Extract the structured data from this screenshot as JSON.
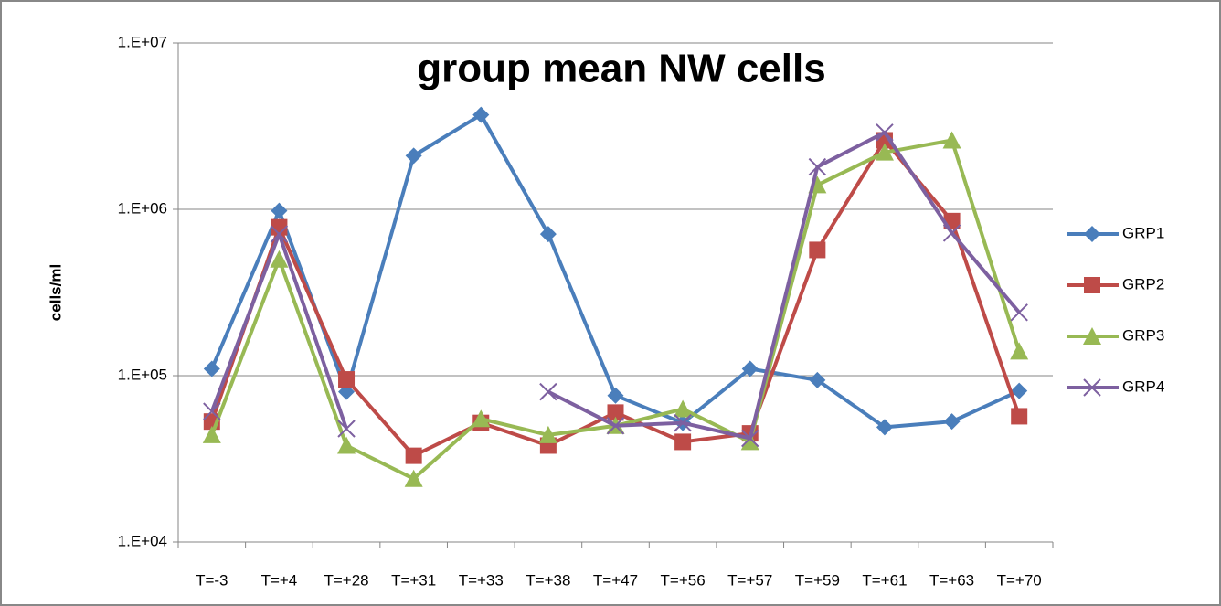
{
  "chart_data": {
    "type": "line",
    "title": "group mean NW cells",
    "y_label": "cells/ml",
    "log_scale": true,
    "grid": true,
    "legend": "right",
    "categories": [
      "T=-3",
      "T=+4",
      "T=+28",
      "T=+31",
      "T=+33",
      "T=+38",
      "T=+47",
      "T=+56",
      "T=+57",
      "T=+59",
      "T=+61",
      "T=+63",
      "T=+70"
    ],
    "ylim": [
      10000,
      10000000
    ],
    "yticks": [
      {
        "value": 10000,
        "label": "1.E+04"
      },
      {
        "value": 100000,
        "label": "1.E+05"
      },
      {
        "value": 1000000,
        "label": "1.E+06"
      },
      {
        "value": 10000000,
        "label": "1.E+07"
      }
    ],
    "series": [
      {
        "name": "GRP1",
        "color": "#4a7ebb",
        "marker": "diamond",
        "values": [
          110000,
          980000,
          80000,
          2100000,
          3700000,
          710000,
          76000,
          52000,
          110000,
          94000,
          49000,
          53000,
          81000
        ]
      },
      {
        "name": "GRP2",
        "color": "#be4b48",
        "marker": "square",
        "values": [
          53000,
          780000,
          95000,
          33000,
          52000,
          38000,
          60000,
          40000,
          45000,
          570000,
          2600000,
          850000,
          57000
        ]
      },
      {
        "name": "GRP3",
        "color": "#98b954",
        "marker": "triangle",
        "values": [
          44000,
          500000,
          38000,
          24000,
          55000,
          44000,
          50000,
          63000,
          40000,
          1400000,
          2200000,
          2600000,
          140000
        ]
      },
      {
        "name": "GRP4",
        "color": "#7d60a0",
        "marker": "x",
        "values": [
          61000,
          710000,
          48000,
          null,
          null,
          80000,
          50000,
          52000,
          42000,
          1800000,
          2900000,
          720000,
          240000
        ]
      }
    ]
  }
}
